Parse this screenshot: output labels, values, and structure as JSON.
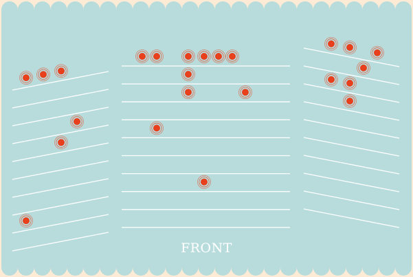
{
  "label": "FRONT",
  "colors": {
    "background": "#fdebd6",
    "panel": "#b8dcdc",
    "row_line": "#ffffff",
    "dot_fill": "#e8401c",
    "dot_ring": "#e8401c"
  },
  "sections": [
    {
      "name": "left",
      "rows": 10,
      "occupied": [
        {
          "row": 1,
          "seats": [
            1,
            2,
            3
          ]
        },
        {
          "row": 4,
          "seats": [
            4
          ]
        },
        {
          "row": 5,
          "seats": [
            3
          ]
        },
        {
          "row": 9,
          "seats": [
            1
          ]
        }
      ]
    },
    {
      "name": "center",
      "rows": 10,
      "occupied": [
        {
          "row": 1,
          "seats": [
            2,
            3,
            5,
            6,
            7,
            8
          ]
        },
        {
          "row": 2,
          "seats": [
            5
          ]
        },
        {
          "row": 3,
          "seats": [
            5,
            9
          ]
        },
        {
          "row": 5,
          "seats": [
            3
          ]
        },
        {
          "row": 8,
          "seats": [
            6
          ]
        }
      ]
    },
    {
      "name": "right",
      "rows": 10,
      "occupied": [
        {
          "row": 1,
          "seats": [
            2,
            3,
            5
          ]
        },
        {
          "row": 2,
          "seats": [
            4
          ]
        },
        {
          "row": 3,
          "seats": [
            2,
            3
          ]
        },
        {
          "row": 4,
          "seats": [
            3
          ]
        }
      ]
    }
  ]
}
